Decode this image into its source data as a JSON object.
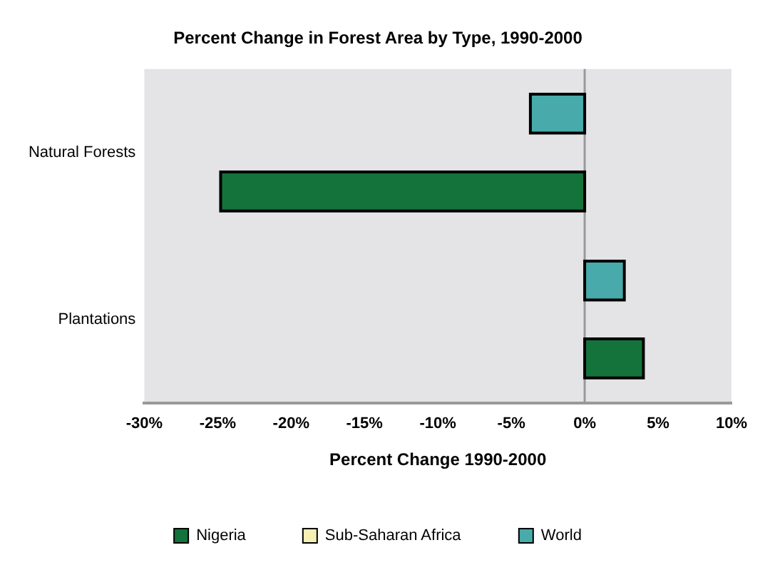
{
  "chart_data": {
    "type": "bar",
    "orientation": "horizontal",
    "title": "Percent Change in Forest Area by Type, 1990-2000",
    "xlabel": "Percent Change 1990-2000",
    "categories": [
      "Natural Forests",
      "Plantations"
    ],
    "series": [
      {
        "name": "World",
        "color": "#48aaaa",
        "values": [
          -3.7,
          2.7
        ]
      },
      {
        "name": "Sub-Saharan Africa",
        "color": "#f5f0b4",
        "values": [
          null,
          null
        ]
      },
      {
        "name": "Nigeria",
        "color": "#13733a",
        "values": [
          -24.8,
          4.0
        ]
      }
    ],
    "xlim": [
      -30,
      10
    ],
    "xticks": [
      {
        "value": -30,
        "label": "-30%"
      },
      {
        "value": -25,
        "label": "-25%"
      },
      {
        "value": -20,
        "label": "-20%"
      },
      {
        "value": -15,
        "label": "-15%"
      },
      {
        "value": -10,
        "label": "-10%"
      },
      {
        "value": -5,
        "label": "-5%"
      },
      {
        "value": 0,
        "label": "0%"
      },
      {
        "value": 5,
        "label": "5%"
      },
      {
        "value": 10,
        "label": "10%"
      }
    ],
    "ref_lines": [
      {
        "axis": "x",
        "value": 0,
        "color": "#999999"
      }
    ],
    "grid": false,
    "legend": "bottom"
  }
}
